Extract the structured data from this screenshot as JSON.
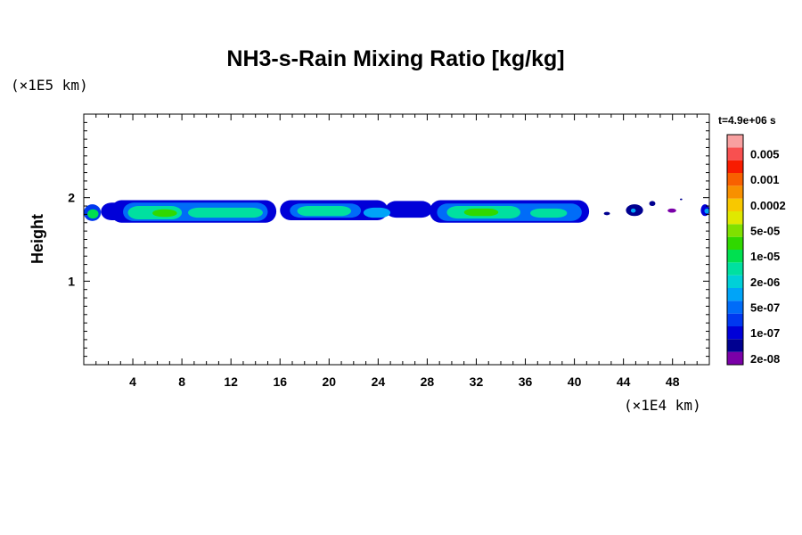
{
  "chart_data": {
    "type": "heatmap",
    "title": "NH3-s-Rain Mixing Ratio [kg/kg]",
    "ylabel": "Height",
    "y_scale_label": "(×1E5 km)",
    "x_scale_label": "(×1E4 km)",
    "time_label": "t=4.9e+06 s",
    "xlim": [
      0,
      51
    ],
    "ylim": [
      0,
      3
    ],
    "x_ticks": [
      4,
      8,
      12,
      16,
      20,
      24,
      28,
      32,
      36,
      40,
      44,
      48
    ],
    "x_tick_labels": [
      "4",
      "8",
      "12",
      "16",
      "20",
      "24",
      "28",
      "32",
      "36",
      "40",
      "44",
      "48"
    ],
    "y_ticks": [
      1,
      2
    ],
    "y_tick_labels": [
      "1",
      "2"
    ],
    "colorbar": {
      "levels": [
        "2e-08",
        "5e-08",
        "1e-07",
        "2e-07",
        "5e-07",
        "1e-06",
        "2e-06",
        "5e-06",
        "1e-05",
        "2e-05",
        "5e-05",
        "0.0001",
        "0.0002",
        "0.0005",
        "0.001",
        "0.002",
        "0.005",
        "0.01"
      ],
      "labeled": [
        "0.005",
        "0.001",
        "0.0002",
        "5e-05",
        "1e-05",
        "2e-06",
        "5e-07",
        "1e-07",
        "2e-08"
      ],
      "colors": [
        "#7a00a8",
        "#000090",
        "#0000d8",
        "#0038f0",
        "#006cf8",
        "#00a4f8",
        "#00d0d8",
        "#00e0a0",
        "#00e050",
        "#30d800",
        "#80e000",
        "#e0e800",
        "#f8c800",
        "#f89000",
        "#f86000",
        "#f81c00",
        "#f85050",
        "#f8a0a0"
      ]
    },
    "cloud_layer": {
      "height_range": [
        1.66,
        1.97
      ],
      "blobs": [
        {
          "x": [
            0,
            1.4
          ],
          "y": [
            1.72,
            1.92
          ],
          "level": 3
        },
        {
          "x": [
            0.3,
            1.2
          ],
          "y": [
            1.75,
            1.86
          ],
          "level": 8
        },
        {
          "x": [
            1.4,
            4.4
          ],
          "y": [
            1.73,
            1.94
          ],
          "level": 2
        },
        {
          "x": [
            2.2,
            15.7
          ],
          "y": [
            1.7,
            1.97
          ],
          "level": 2
        },
        {
          "x": [
            3.2,
            15.0
          ],
          "y": [
            1.72,
            1.94
          ],
          "level": 4
        },
        {
          "x": [
            3.6,
            8.0
          ],
          "y": [
            1.74,
            1.9
          ],
          "level": 7
        },
        {
          "x": [
            8.5,
            14.6
          ],
          "y": [
            1.76,
            1.88
          ],
          "level": 7
        },
        {
          "x": [
            5.6,
            7.6
          ],
          "y": [
            1.77,
            1.86
          ],
          "level": 9
        },
        {
          "x": [
            16.0,
            24.8
          ],
          "y": [
            1.73,
            1.97
          ],
          "level": 2
        },
        {
          "x": [
            16.8,
            22.6
          ],
          "y": [
            1.76,
            1.93
          ],
          "level": 4
        },
        {
          "x": [
            17.4,
            21.8
          ],
          "y": [
            1.78,
            1.9
          ],
          "level": 7
        },
        {
          "x": [
            22.8,
            25.0
          ],
          "y": [
            1.76,
            1.88
          ],
          "level": 5
        },
        {
          "x": [
            24.6,
            28.4
          ],
          "y": [
            1.76,
            1.96
          ],
          "level": 2
        },
        {
          "x": [
            28.2,
            41.2
          ],
          "y": [
            1.7,
            1.97
          ],
          "level": 2
        },
        {
          "x": [
            28.8,
            40.6
          ],
          "y": [
            1.72,
            1.93
          ],
          "level": 4
        },
        {
          "x": [
            29.6,
            35.6
          ],
          "y": [
            1.75,
            1.9
          ],
          "level": 7
        },
        {
          "x": [
            31.0,
            33.8
          ],
          "y": [
            1.78,
            1.87
          ],
          "level": 9
        },
        {
          "x": [
            36.4,
            39.4
          ],
          "y": [
            1.76,
            1.87
          ],
          "level": 7
        },
        {
          "x": [
            42.4,
            42.9
          ],
          "y": [
            1.79,
            1.83
          ],
          "level": 1
        },
        {
          "x": [
            44.2,
            45.6
          ],
          "y": [
            1.78,
            1.92
          ],
          "level": 1
        },
        {
          "x": [
            44.6,
            45.0
          ],
          "y": [
            1.82,
            1.87
          ],
          "level": 5
        },
        {
          "x": [
            46.1,
            46.6
          ],
          "y": [
            1.9,
            1.96
          ],
          "level": 1
        },
        {
          "x": [
            47.6,
            48.3
          ],
          "y": [
            1.82,
            1.87
          ],
          "level": 0
        },
        {
          "x": [
            48.6,
            48.8
          ],
          "y": [
            1.97,
            1.99
          ],
          "level": 1
        },
        {
          "x": [
            50.3,
            51.0
          ],
          "y": [
            1.78,
            1.92
          ],
          "level": 2
        },
        {
          "x": [
            50.6,
            51.0
          ],
          "y": [
            1.81,
            1.87
          ],
          "level": 5
        }
      ]
    }
  }
}
